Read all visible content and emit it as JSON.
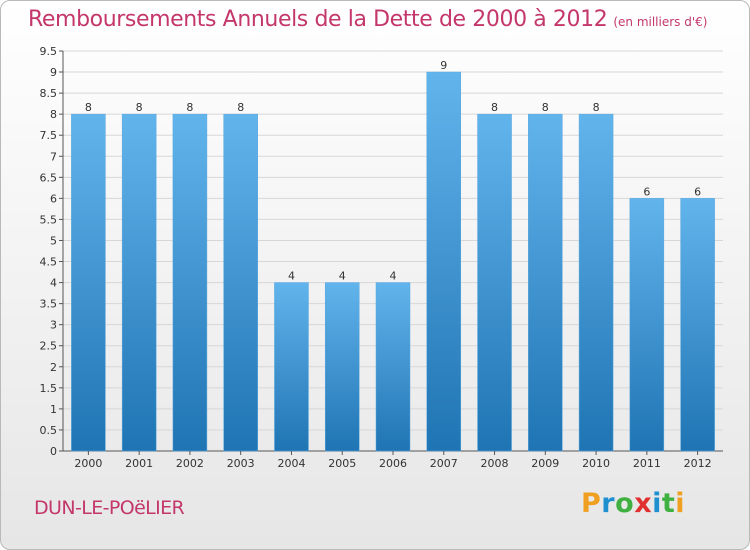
{
  "header": {
    "title": "Remboursements Annuels de la Dette de 2000 à 2012",
    "unit": "(en milliers d'€)"
  },
  "footer": {
    "commune": "DUN-LE-POëLIER",
    "logo": {
      "letters": [
        "P",
        "r",
        "o",
        "x",
        "i",
        "t",
        "i"
      ],
      "colors": [
        "#f0a020",
        "#1e90d0",
        "#40b040",
        "#e03030",
        "#1e90d0",
        "#40b040",
        "#f0a020"
      ]
    }
  },
  "colors": {
    "bar_light": "#62b4ec",
    "bar_dark": "#1f74b3",
    "title": "#c4376b",
    "grid": "#d7d7d7"
  },
  "chart_data": {
    "type": "bar",
    "title": "Remboursements Annuels de la Dette de 2000 à 2012",
    "categories": [
      "2000",
      "2001",
      "2002",
      "2003",
      "2004",
      "2005",
      "2006",
      "2007",
      "2008",
      "2009",
      "2010",
      "2011",
      "2012"
    ],
    "values": [
      8,
      8,
      8,
      8,
      4,
      4,
      4,
      9,
      8,
      8,
      8,
      6,
      6
    ],
    "data_labels": [
      "8",
      "8",
      "8",
      "8",
      "4",
      "4",
      "4",
      "9",
      "8",
      "8",
      "8",
      "6",
      "6"
    ],
    "ylim": [
      0,
      9.5
    ],
    "yticks": [
      0,
      0.5,
      1,
      1.5,
      2,
      2.5,
      3,
      3.5,
      4,
      4.5,
      5,
      5.5,
      6,
      6.5,
      7,
      7.5,
      8,
      8.5,
      9,
      9.5
    ],
    "ytick_labels": [
      "0",
      "0.5",
      "1",
      "1.5",
      "2",
      "2.5",
      "3",
      "3.5",
      "4",
      "4.5",
      "5",
      "5.5",
      "6",
      "6.5",
      "7",
      "7.5",
      "8",
      "8.5",
      "9",
      "9.5"
    ],
    "grid": true
  }
}
